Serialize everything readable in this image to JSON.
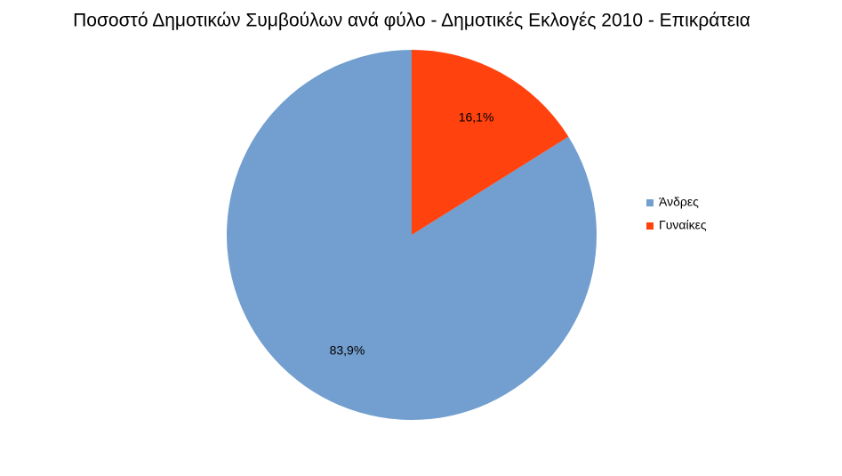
{
  "chart_data": {
    "type": "pie",
    "title": "Ποσοστό Δημοτικών Συμβούλων ανά φύλο - Δημοτικές Εκλογές 2010 - Επικράτεια",
    "categories": [
      "Άνδρες",
      "Γυναίκες"
    ],
    "values": [
      83.9,
      16.1
    ],
    "value_labels": [
      "83,9%",
      "16,1%"
    ],
    "colors": [
      "#729fcf",
      "#ff420e"
    ],
    "legend": "right"
  }
}
